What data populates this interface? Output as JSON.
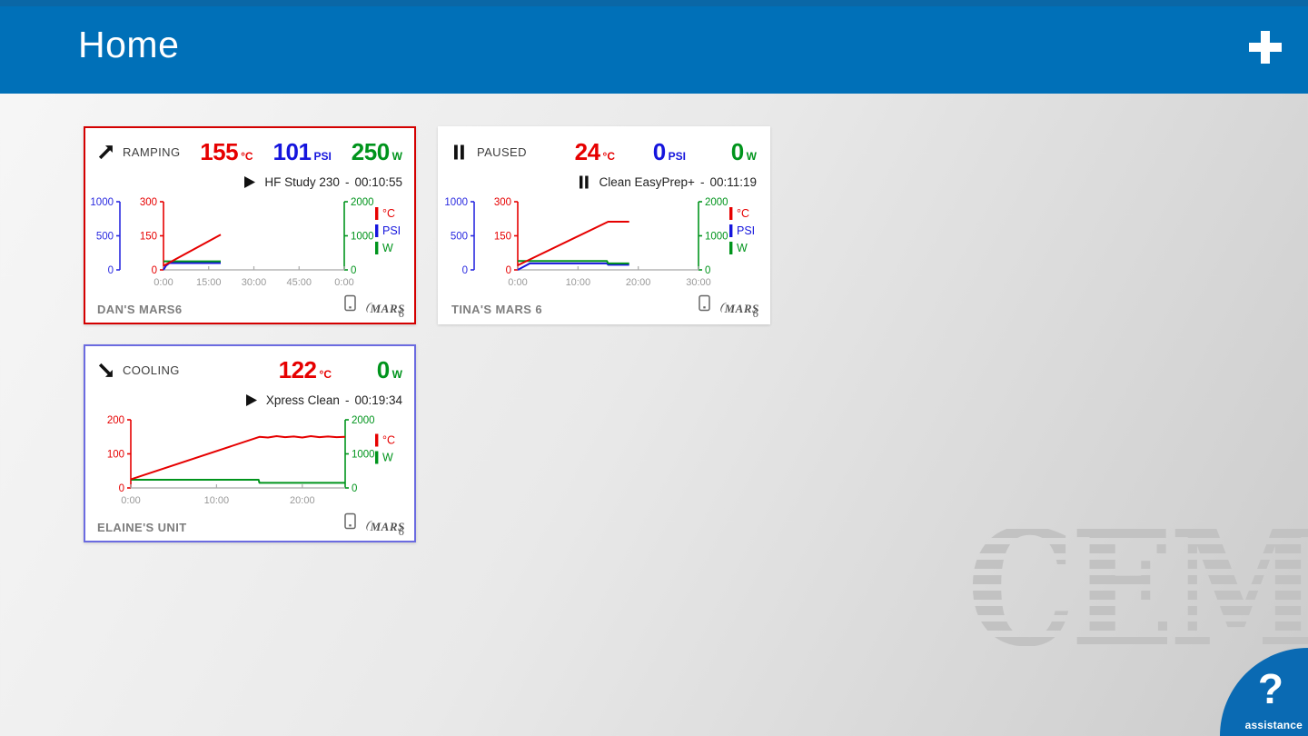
{
  "header": {
    "title": "Home",
    "add_button_label": "+"
  },
  "watermark": {
    "text": "CEM"
  },
  "assistance": {
    "icon": "?",
    "label": "assistance"
  },
  "mars_logo": {
    "paren": "(",
    "text": "MARS",
    "number": "6"
  },
  "colors": {
    "header_blue": "#0070b8",
    "header_top_strip": "#0a67a6",
    "assistance_blue": "#0a6ab3",
    "temp_red": "#e60000",
    "pressure_blue": "#1515dd",
    "power_green": "#00941c"
  },
  "cards": [
    {
      "device_name": "DAN'S MARS6",
      "border_color": "#d40000",
      "status": {
        "label": "RAMPING",
        "icon": "trend-up"
      },
      "readings": [
        {
          "value": "155",
          "unit": "°C",
          "color": "#e60000"
        },
        {
          "value": "101",
          "unit": "PSI",
          "color": "#1515dd"
        },
        {
          "value": "250",
          "unit": "W",
          "color": "#00941c"
        }
      ],
      "method": {
        "icon": "play",
        "name": "HF Study 230",
        "separator": "-",
        "elapsed": "00:10:55"
      },
      "chart_data": {
        "type": "line",
        "x_max": 60,
        "x_ticks": [
          {
            "t": 0,
            "label": "0:00"
          },
          {
            "t": 15,
            "label": "15:00"
          },
          {
            "t": 30,
            "label": "30:00"
          },
          {
            "t": 45,
            "label": "45:00"
          },
          {
            "t": 60,
            "label": "0:00"
          }
        ],
        "axes": [
          {
            "id": "pressure",
            "side": "left",
            "max": 1000,
            "ticks": [
              "1000",
              "500",
              "0"
            ],
            "color": "#2a2ae0"
          },
          {
            "id": "temperature",
            "side": "left",
            "max": 300,
            "ticks": [
              "300",
              "150",
              "0"
            ],
            "color": "#e60000"
          },
          {
            "id": "power",
            "side": "right",
            "max": 2000,
            "ticks": [
              "2000",
              "1000",
              "0"
            ],
            "color": "#00941c"
          }
        ],
        "legend": [
          {
            "label": "°C",
            "color": "#e60000"
          },
          {
            "label": "PSI",
            "color": "#1515dd"
          },
          {
            "label": "W",
            "color": "#00941c"
          }
        ],
        "series": [
          {
            "name": "pressure",
            "axis": "pressure",
            "color": "#1515dd",
            "points": [
              [
                0,
                0
              ],
              [
                0.8,
                60
              ],
              [
                2,
                100
              ],
              [
                19,
                100
              ]
            ]
          },
          {
            "name": "power",
            "axis": "power",
            "color": "#00941c",
            "points": [
              [
                0,
                250
              ],
              [
                19,
                250
              ]
            ]
          },
          {
            "name": "temperature",
            "axis": "temperature",
            "color": "#e60000",
            "points": [
              [
                0,
                18
              ],
              [
                19,
                155
              ]
            ]
          }
        ]
      }
    },
    {
      "device_name": "TINA'S MARS 6",
      "border_color": "#ffffff",
      "status": {
        "label": "PAUSED",
        "icon": "pause"
      },
      "readings": [
        {
          "value": "24",
          "unit": "°C",
          "color": "#e60000"
        },
        {
          "value": "0",
          "unit": "PSI",
          "color": "#1515dd"
        },
        {
          "value": "0",
          "unit": "W",
          "color": "#00941c"
        }
      ],
      "method": {
        "icon": "pause",
        "name": "Clean EasyPrep+",
        "separator": "-",
        "elapsed": "00:11:19"
      },
      "chart_data": {
        "type": "line",
        "x_max": 30,
        "x_ticks": [
          {
            "t": 0,
            "label": "0:00"
          },
          {
            "t": 10,
            "label": "10:00"
          },
          {
            "t": 20,
            "label": "20:00"
          },
          {
            "t": 30,
            "label": "30:00"
          }
        ],
        "axes": [
          {
            "id": "pressure",
            "side": "left",
            "max": 1000,
            "ticks": [
              "1000",
              "500",
              "0"
            ],
            "color": "#2a2ae0"
          },
          {
            "id": "temperature",
            "side": "left",
            "max": 300,
            "ticks": [
              "300",
              "150",
              "0"
            ],
            "color": "#e60000"
          },
          {
            "id": "power",
            "side": "right",
            "max": 2000,
            "ticks": [
              "2000",
              "1000",
              "0"
            ],
            "color": "#00941c"
          }
        ],
        "legend": [
          {
            "label": "°C",
            "color": "#e60000"
          },
          {
            "label": "PSI",
            "color": "#1515dd"
          },
          {
            "label": "W",
            "color": "#00941c"
          }
        ],
        "series": [
          {
            "name": "pressure",
            "axis": "pressure",
            "color": "#1515dd",
            "points": [
              [
                0,
                0
              ],
              [
                2,
                95
              ],
              [
                14.8,
                95
              ],
              [
                15,
                75
              ],
              [
                18.5,
                75
              ]
            ]
          },
          {
            "name": "power",
            "axis": "power",
            "color": "#00941c",
            "points": [
              [
                0,
                260
              ],
              [
                14.8,
                260
              ],
              [
                15,
                190
              ],
              [
                18.5,
                190
              ]
            ]
          },
          {
            "name": "temperature",
            "axis": "temperature",
            "color": "#e60000",
            "points": [
              [
                0,
                20
              ],
              [
                15,
                212
              ],
              [
                18.5,
                212
              ]
            ]
          }
        ]
      }
    },
    {
      "device_name": "ELAINE'S UNIT",
      "border_color": "#6b6be0",
      "status": {
        "label": "COOLING",
        "icon": "trend-down"
      },
      "readings": [
        {
          "value": "122",
          "unit": "°C",
          "color": "#e60000"
        },
        {
          "value": "0",
          "unit": "W",
          "color": "#00941c"
        }
      ],
      "method": {
        "icon": "play",
        "name": "Xpress Clean",
        "separator": "-",
        "elapsed": "00:19:34"
      },
      "chart_data": {
        "type": "line",
        "x_max": 25,
        "x_ticks": [
          {
            "t": 0,
            "label": "0:00"
          },
          {
            "t": 10,
            "label": "10:00"
          },
          {
            "t": 20,
            "label": "20:00"
          }
        ],
        "axes": [
          {
            "id": "temperature",
            "side": "left",
            "max": 200,
            "ticks": [
              "200",
              "100",
              "0"
            ],
            "color": "#e60000"
          },
          {
            "id": "power",
            "side": "right",
            "max": 2000,
            "ticks": [
              "2000",
              "1000",
              "0"
            ],
            "color": "#00941c"
          }
        ],
        "legend": [
          {
            "label": "°C",
            "color": "#e60000"
          },
          {
            "label": "W",
            "color": "#00941c"
          }
        ],
        "series": [
          {
            "name": "power",
            "axis": "power",
            "color": "#00941c",
            "points": [
              [
                0,
                240
              ],
              [
                14.9,
                240
              ],
              [
                15,
                150
              ],
              [
                25,
                150
              ]
            ]
          },
          {
            "name": "temperature",
            "axis": "temperature",
            "color": "#e60000",
            "points": [
              [
                0,
                25
              ],
              [
                15,
                150
              ],
              [
                16,
                148
              ],
              [
                17,
                152
              ],
              [
                18,
                149
              ],
              [
                19,
                151
              ],
              [
                20,
                148
              ],
              [
                21,
                152
              ],
              [
                22,
                149
              ],
              [
                23,
                151
              ],
              [
                24,
                149
              ],
              [
                25,
                150
              ]
            ]
          }
        ]
      }
    }
  ]
}
